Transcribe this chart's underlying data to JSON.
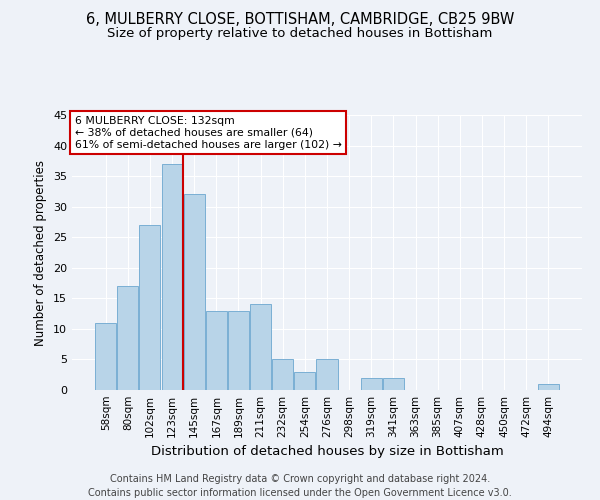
{
  "title": "6, MULBERRY CLOSE, BOTTISHAM, CAMBRIDGE, CB25 9BW",
  "subtitle": "Size of property relative to detached houses in Bottisham",
  "xlabel": "Distribution of detached houses by size in Bottisham",
  "ylabel": "Number of detached properties",
  "footer": "Contains HM Land Registry data © Crown copyright and database right 2024.\nContains public sector information licensed under the Open Government Licence v3.0.",
  "bin_labels": [
    "58sqm",
    "80sqm",
    "102sqm",
    "123sqm",
    "145sqm",
    "167sqm",
    "189sqm",
    "211sqm",
    "232sqm",
    "254sqm",
    "276sqm",
    "298sqm",
    "319sqm",
    "341sqm",
    "363sqm",
    "385sqm",
    "407sqm",
    "428sqm",
    "450sqm",
    "472sqm",
    "494sqm"
  ],
  "bar_values": [
    11,
    17,
    27,
    37,
    32,
    13,
    13,
    14,
    5,
    3,
    5,
    0,
    2,
    2,
    0,
    0,
    0,
    0,
    0,
    0,
    1
  ],
  "bar_color": "#b8d4e8",
  "bar_edge_color": "#7aafd4",
  "red_line_index": 3.5,
  "annotation_title": "6 MULBERRY CLOSE: 132sqm",
  "annotation_line1": "← 38% of detached houses are smaller (64)",
  "annotation_line2": "61% of semi-detached houses are larger (102) →",
  "annotation_box_color": "#ffffff",
  "annotation_box_edge_color": "#cc0000",
  "red_line_color": "#cc0000",
  "background_color": "#eef2f8",
  "ylim": [
    0,
    45
  ],
  "yticks": [
    0,
    5,
    10,
    15,
    20,
    25,
    30,
    35,
    40,
    45
  ],
  "title_fontsize": 10.5,
  "subtitle_fontsize": 9.5,
  "xlabel_fontsize": 9.5,
  "ylabel_fontsize": 8.5,
  "footer_fontsize": 7.0,
  "tick_fontsize": 7.5,
  "ytick_fontsize": 8.0
}
